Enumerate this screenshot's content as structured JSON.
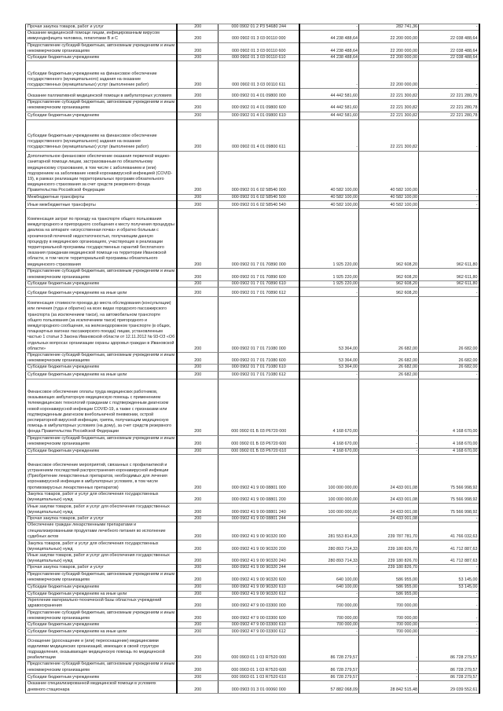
{
  "table": {
    "rows": [
      {
        "name": "Прочая закупка товаров, работ и услуг",
        "kod": "200",
        "code": "000 0902 01 2 Р3 54680 244",
        "approved": "-",
        "executed": "282 741,36",
        "unexecuted": "-"
      },
      {
        "name": "Оказание медицинской помощи лицам, инфицированным вирусом иммунодефицита человека, гепатитами B и C",
        "kod": "200",
        "code": "000 0902 01 3 03 00110 000",
        "approved": "44 238 488,64",
        "executed": "22 200 000,00",
        "unexecuted": "22 038 488,64"
      },
      {
        "name": "Предоставление субсидий бюджетным, автономным учреждениям и иным некоммерческим организациям",
        "kod": "200",
        "code": "000 0902 01 3 03 00110 600",
        "approved": "44 238 488,64",
        "executed": "22 200 000,00",
        "unexecuted": "22 038 488,64"
      },
      {
        "name": "Субсидии бюджетным учреждениям",
        "kod": "200",
        "code": "000 0902 01 3 03 00110 610",
        "approved": "44 238 488,64",
        "executed": "22 200 000,00",
        "unexecuted": "22 038 488,64"
      },
      {
        "name": "Субсидии бюджетным учреждениям на финансовое обеспечение государственного (муниципального) задания на оказание государственных (муниципальных) услуг (выполнение работ)",
        "kod": "200",
        "code": "000 0902 01 3 03 00110 611",
        "approved": "-",
        "executed": "22 200 000,00",
        "unexecuted": "-"
      },
      {
        "name": "Оказание паллиативной медицинской помощи в амбулаторных условиях",
        "kod": "200",
        "code": "000 0902 01 4 01 09800 000",
        "approved": "44 442 581,60",
        "executed": "22 221 300,82",
        "unexecuted": "22 221 280,78"
      },
      {
        "name": "Предоставление субсидий бюджетным, автономным учреждениям и иным некоммерческим организациям",
        "kod": "200",
        "code": "000 0902 01 4 01 09800 600",
        "approved": "44 442 581,60",
        "executed": "22 221 300,82",
        "unexecuted": "22 221 280,78"
      },
      {
        "name": "Субсидии бюджетным учреждениям",
        "kod": "200",
        "code": "000 0902 01 4 01 09800 610",
        "approved": "44 442 581,60",
        "executed": "22 221 300,82",
        "unexecuted": "22 221 280,78"
      },
      {
        "name": "Субсидии бюджетным учреждениям на финансовое обеспечение государственного (муниципального) задания на оказание государственных (муниципальных) услуг (выполнение работ)",
        "kod": "200",
        "code": "000 0902 01 4 01 09800 611",
        "approved": "-",
        "executed": "22 221 300,82",
        "unexecuted": "-"
      },
      {
        "name": "Дополнительное финансовое обеспечение оказания первичной медико-санитарной помощи лицам, застрахованным по обязательному медицинскому страхованию, в том числе с заболеванием и (или) подозрением на заболевание новой коронавирусной инфекцией (COVID-19), в рамках реализации территориальных программ обязательного медицинского страхования за счет средств резервного фонда Правительства Российской Федерации",
        "kod": "200",
        "code": "000 0902 01 6 02 58540 000",
        "approved": "40 582 100,00",
        "executed": "40 582 100,00",
        "unexecuted": "-"
      },
      {
        "name": "Межбюджетные трансферты",
        "kod": "200",
        "code": "000 0902 01 6 02 58540 500",
        "approved": "40 582 100,00",
        "executed": "40 582 100,00",
        "unexecuted": "-"
      },
      {
        "name": "Иные межбюджетные трансферты",
        "kod": "200",
        "code": "000 0902 01 6 02 58540 540",
        "approved": "40 582 100,00",
        "executed": "40 582 100,00",
        "unexecuted": "-"
      },
      {
        "name": "Компенсация затрат по проезду на транспорте общего пользования междугородного и пригородного сообщения к месту получения процедуры диализа на аппарате «искусственная почка» и обратно больным с хронической почечной недостаточностью, получающим данную процедуру в медицинских организациях, участвующих в реализации территориальной программы государственных гарантий бесплатного оказания гражданам медицинской помощи на территории Ивановской области, в том числе территориальной программы обязательного медицинского страхования",
        "kod": "200",
        "code": "000 0902 01 7 01 70890 000",
        "approved": "1 925 220,00",
        "executed": "962 608,20",
        "unexecuted": "962 611,80"
      },
      {
        "name": "Предоставление субсидий бюджетным, автономным учреждениям и иным некоммерческим организациям",
        "kod": "200",
        "code": "000 0902 01 7 01 70890 600",
        "approved": "1 925 220,00",
        "executed": "962 608,20",
        "unexecuted": "962 611,80"
      },
      {
        "name": "Субсидии бюджетным учреждениям",
        "kod": "200",
        "code": "000 0902 01 7 01 70890 610",
        "approved": "1 925 220,00",
        "executed": "962 608,20",
        "unexecuted": "962 611,80"
      },
      {
        "name": "Субсидии бюджетным учреждениям на иные цели",
        "kod": "200",
        "code": "000 0902 01 7 01 70890 612",
        "approved": "-",
        "executed": "962 608,20",
        "unexecuted": "-"
      },
      {
        "name": "Компенсация стоимости проезда до места обследования (консультации) или лечения (туда и обратно) на всех видах городского пассажирского транспорта (за исключением такси), на автомобильном транспорте общего пользования (за исключением такси) пригородного и междугородного сообщения, на железнодорожном транспорте (в общих, плацкартных вагонах пассажирского поезда) лицам, установленным частью 1 статьи 3 Закона Ивановской области от 12.11.2012 № 93-ОЗ «Об отдельных вопросах организации охраны здоровья граждан в Ивановской области»",
        "kod": "200",
        "code": "000 0902 01 7 01 71080 000",
        "approved": "53 364,00",
        "executed": "26 682,00",
        "unexecuted": "26 682,00"
      },
      {
        "name": "Предоставление субсидий бюджетным, автономным учреждениям и иным некоммерческим организациям",
        "kod": "200",
        "code": "000 0902 01 7 01 71080 600",
        "approved": "53 364,00",
        "executed": "26 682,00",
        "unexecuted": "26 682,00"
      },
      {
        "name": "Субсидии бюджетным учреждениям",
        "kod": "200",
        "code": "000 0902 01 7 01 71080 610",
        "approved": "53 364,00",
        "executed": "26 682,00",
        "unexecuted": "26 682,00"
      },
      {
        "name": "Субсидии бюджетным учреждениям на иные цели",
        "kod": "200",
        "code": "000 0902 01 7 01 71080 612",
        "approved": "-",
        "executed": "26 682,00",
        "unexecuted": "-"
      },
      {
        "name": "Финансовое обеспечение оплаты труда медицинских работников, оказывающих амбулаторную медицинскую помощь с применением телемедицинских технологий гражданам с подтвержденным диагнозом новой коронавирусной инфекции COVID-19, а также с признаками или подтвержденным диагнозом внебольничной пневмонии, острой респираторной вирусной инфекции, гриппа, получающим медицинскую помощь в амбулаторных условиях (на дому), за счет средств резервного фонда Правительства Российской Федерации",
        "kod": "200",
        "code": "000 0902 01 Б 03 Р6720 000",
        "approved": "4 168 670,00",
        "executed": "-",
        "unexecuted": "4 168 670,00"
      },
      {
        "name": "Предоставление субсидий бюджетным, автономным учреждениям и иным некоммерческим организациям",
        "kod": "200",
        "code": "000 0902 01 Б 03 Р6720 600",
        "approved": "4 168 670,00",
        "executed": "-",
        "unexecuted": "4 168 670,00"
      },
      {
        "name": "Субсидии бюджетным учреждениям",
        "kod": "200",
        "code": "000 0902 01 Б 03 Р6720 610",
        "approved": "4 168 670,00",
        "executed": "-",
        "unexecuted": "4 168 670,00"
      },
      {
        "name": "Финансовое обеспечение мероприятий, связанных с профилактикой и устранением последствий распространения коронавирусной инфекции (Приобретение лекарственных препаратов, необходимых для лечения коронавирусной инфекции в амбулаторных условиях, в том числе противовирусных лекарственных препаратов)",
        "kod": "200",
        "code": "000 0902 41 9 00 08801 000",
        "approved": "100 000 000,00",
        "executed": "24 433 001,08",
        "unexecuted": "75 566 998,92"
      },
      {
        "name": "Закупка товаров, работ и услуг для обеспечения государственных (муниципальных) нужд",
        "kod": "200",
        "code": "000 0902 41 9 00 08801 200",
        "approved": "100 000 000,00",
        "executed": "24 433 001,08",
        "unexecuted": "75 566 998,92"
      },
      {
        "name": "Иные закупки товаров, работ и услуг для обеспечения государственных (муниципальных) нужд",
        "kod": "200",
        "code": "000 0902 41 9 00 08801 240",
        "approved": "100 000 000,00",
        "executed": "24 433 001,08",
        "unexecuted": "75 566 998,92"
      },
      {
        "name": "Прочая закупка товаров, работ и услуг",
        "kod": "200",
        "code": "000 0902 41 9 00 08801 244",
        "approved": "-",
        "executed": "24 433 001,08",
        "unexecuted": "-"
      },
      {
        "name": "Обеспечение граждан лекарственными препаратами и специализированными продуктами лечебного питания во исполнение судебных актов",
        "kod": "200",
        "code": "000 0902 41 9 00 90320 000",
        "approved": "281 553 814,33",
        "executed": "239 787 781,70",
        "unexecuted": "41 766 032,63"
      },
      {
        "name": "Закупка товаров, работ и услуг для обеспечения государственных (муниципальных) нужд",
        "kod": "200",
        "code": "000 0902 41 9 00 90320 200",
        "approved": "280 893 714,33",
        "executed": "239 180 826,70",
        "unexecuted": "41 712 887,63"
      },
      {
        "name": "Иные закупки товаров, работ и услуг для обеспечения государственных (муниципальных) нужд",
        "kod": "200",
        "code": "000 0902 41 9 00 90320 240",
        "approved": "280 893 714,33",
        "executed": "239 180 826,70",
        "unexecuted": "41 712 887,63"
      },
      {
        "name": "Прочая закупка товаров, работ и услуг",
        "kod": "200",
        "code": "000 0902 41 9 00 90320 244",
        "approved": "-",
        "executed": "239 180 826,70",
        "unexecuted": "-"
      },
      {
        "name": "Предоставление субсидий бюджетным, автономным учреждениям и иным некоммерческим организациям",
        "kod": "200",
        "code": "000 0902 41 9 00 90320 600",
        "approved": "640 100,00",
        "executed": "586 955,00",
        "unexecuted": "53 145,00"
      },
      {
        "name": "Субсидии бюджетным учреждениям",
        "kod": "200",
        "code": "000 0902 41 9 00 90320 610",
        "approved": "640 100,00",
        "executed": "586 955,00",
        "unexecuted": "53 145,00"
      },
      {
        "name": "Субсидии бюджетным учреждениям на иные цели",
        "kod": "200",
        "code": "000 0902 41 9 00 90320 612",
        "approved": "-",
        "executed": "586 955,00",
        "unexecuted": "-"
      },
      {
        "name": "Укрепление материально-технической базы областных учреждений здравоохранения",
        "kod": "200",
        "code": "000 0902 47 9 00 03300 000",
        "approved": "700 000,00",
        "executed": "700 000,00",
        "unexecuted": "-"
      },
      {
        "name": "Предоставление субсидий бюджетным, автономным учреждениям и иным некоммерческим организациям",
        "kod": "200",
        "code": "000 0902 47 9 00 03300 600",
        "approved": "700 000,00",
        "executed": "700 000,00",
        "unexecuted": "-"
      },
      {
        "name": "Субсидии бюджетным учреждениям",
        "kod": "200",
        "code": "000 0902 47 9 00 03300 610",
        "approved": "700 000,00",
        "executed": "700 000,00",
        "unexecuted": "-"
      },
      {
        "name": "Субсидии бюджетным учреждениям на иные цели",
        "kod": "200",
        "code": "000 0902 47 9 00 03300 612",
        "approved": "-",
        "executed": "700 000,00",
        "unexecuted": "-"
      },
      {
        "name": "Оснащение (дооснащение и (или) переоснащение) медицинскими изделиями медицинских организаций, имеющих в своей структуре подразделения, оказывающие медицинскую помощь по медицинской реабилитации",
        "kod": "200",
        "code": "000 0903 01 1 03 R7520 000",
        "approved": "86 728 279,57",
        "executed": "-",
        "unexecuted": "86 728 279,57"
      },
      {
        "name": "Предоставление субсидий бюджетным, автономным учреждениям и иным некоммерческим организациям",
        "kod": "200",
        "code": "000 0903 01 1 03 R7520 600",
        "approved": "86 728 279,57",
        "executed": "-",
        "unexecuted": "86 728 279,57"
      },
      {
        "name": "Субсидии бюджетным учреждениям",
        "kod": "200",
        "code": "000 0903 01 1 03 R7520 610",
        "approved": "86 728 279,57",
        "executed": "-",
        "unexecuted": "86 728 279,57"
      },
      {
        "name": "Оказание специализированной медицинской помощи в условиях дневного стационара",
        "kod": "200",
        "code": "000 0903 01 3 01 00060 000",
        "approved": "57 882 068,09",
        "executed": "28 842 515,48",
        "unexecuted": "29 039 552,61"
      }
    ]
  }
}
